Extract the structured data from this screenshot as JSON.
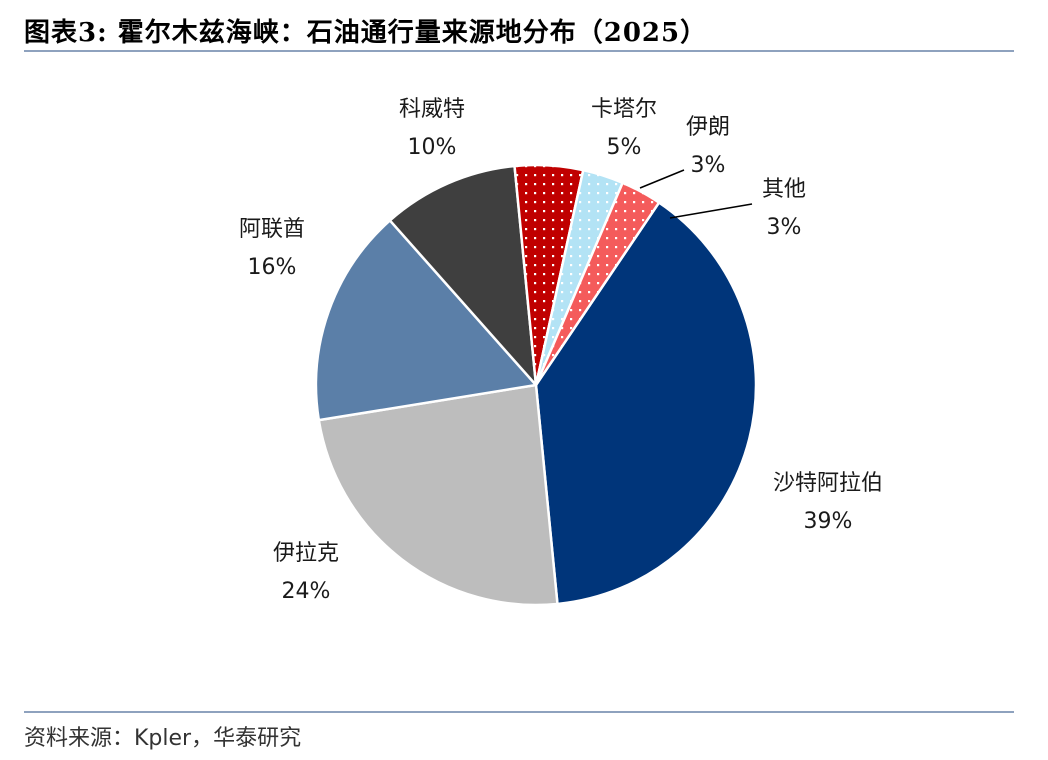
{
  "header": {
    "title": "图表3:  霍尔木兹海峡：石油通行量来源地分布（2025）"
  },
  "footer": {
    "source": "资料来源：Kpler，华泰研究"
  },
  "chart_data": {
    "type": "pie",
    "title": "霍尔木兹海峡：石油通行量来源地分布（2025）",
    "slices": [
      {
        "name": "沙特阿拉伯",
        "value": 39,
        "label": "39%",
        "color": "#00357a",
        "pattern": "solid"
      },
      {
        "name": "伊拉克",
        "value": 24,
        "label": "24%",
        "color": "#bdbdbd",
        "pattern": "solid"
      },
      {
        "name": "阿联酋",
        "value": 16,
        "label": "16%",
        "color": "#5b7fa8",
        "pattern": "solid"
      },
      {
        "name": "科威特",
        "value": 10,
        "label": "10%",
        "color": "#3f3f3f",
        "pattern": "solid"
      },
      {
        "name": "卡塔尔",
        "value": 5,
        "label": "5%",
        "color": "#c00000",
        "pattern": "dots"
      },
      {
        "name": "伊朗",
        "value": 3,
        "label": "3%",
        "color": "#b3e3f5",
        "pattern": "dots"
      },
      {
        "name": "其他",
        "value": 3,
        "label": "3%",
        "color": "#f45b5b",
        "pattern": "dots"
      }
    ]
  }
}
